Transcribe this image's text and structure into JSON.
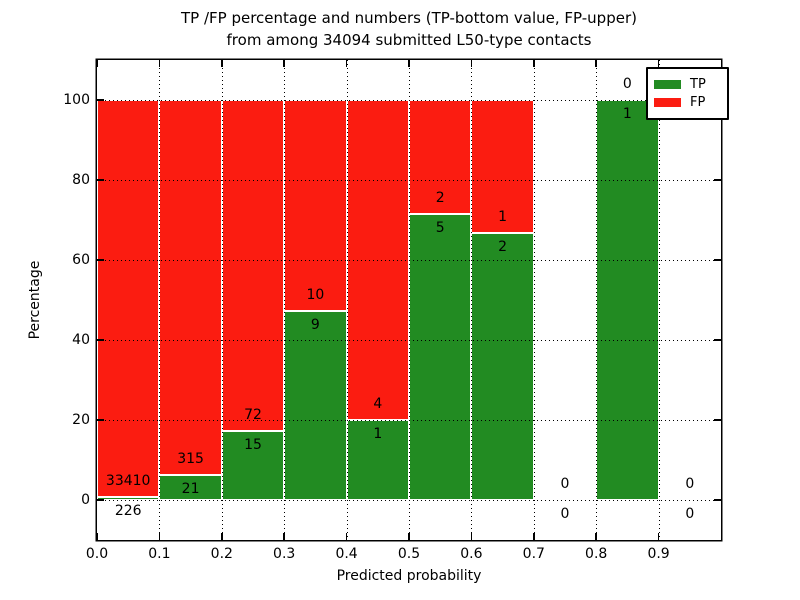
{
  "title": {
    "line1": "TP /FP percentage and numbers (TP-bottom value, FP-upper)",
    "line2": "from among 34094 submitted L50-type contacts"
  },
  "axes": {
    "xlabel": "Predicted probability",
    "ylabel": "Percentage",
    "x_tick_labels": [
      "0.0",
      "0.1",
      "0.2",
      "0.3",
      "0.4",
      "0.5",
      "0.6",
      "0.7",
      "0.8",
      "0.9"
    ],
    "x_tick_values": [
      0.0,
      0.1,
      0.2,
      0.3,
      0.4,
      0.5,
      0.6,
      0.7,
      0.8,
      0.9
    ],
    "y_tick_labels": [
      "0",
      "20",
      "40",
      "60",
      "80",
      "100"
    ],
    "y_tick_values": [
      0,
      20,
      40,
      60,
      80,
      100
    ],
    "xlim": [
      0.0,
      1.0
    ],
    "ylim": [
      -10,
      110
    ],
    "grid": "dotted"
  },
  "legend": {
    "position": "upper right",
    "items": [
      {
        "label": "TP",
        "color": "#228b22"
      },
      {
        "label": "FP",
        "color": "#fb1c11"
      }
    ]
  },
  "colors": {
    "tp_green": "#228b22",
    "fp_red": "#fb1c11",
    "background": "#ffffff",
    "text": "#000000"
  },
  "chart_data": {
    "type": "bar",
    "stacked": true,
    "normalized_to": 100,
    "title": "TP /FP percentage and numbers (TP-bottom value, FP-upper) from among 34094 submitted L50-type contacts",
    "xlabel": "Predicted probability",
    "ylabel": "Percentage",
    "series_order_bottom_to_top": [
      "TP",
      "FP"
    ],
    "bins": [
      {
        "x0": 0.0,
        "x1": 0.1,
        "tp": 226,
        "fp": 33410
      },
      {
        "x0": 0.1,
        "x1": 0.2,
        "tp": 21,
        "fp": 315
      },
      {
        "x0": 0.2,
        "x1": 0.3,
        "tp": 15,
        "fp": 72
      },
      {
        "x0": 0.3,
        "x1": 0.4,
        "tp": 9,
        "fp": 10
      },
      {
        "x0": 0.4,
        "x1": 0.5,
        "tp": 1,
        "fp": 4
      },
      {
        "x0": 0.5,
        "x1": 0.6,
        "tp": 5,
        "fp": 2
      },
      {
        "x0": 0.6,
        "x1": 0.7,
        "tp": 2,
        "fp": 1
      },
      {
        "x0": 0.7,
        "x1": 0.8,
        "tp": 0,
        "fp": 0
      },
      {
        "x0": 0.8,
        "x1": 0.9,
        "tp": 1,
        "fp": 0
      },
      {
        "x0": 0.9,
        "x1": 1.0,
        "tp": 0,
        "fp": 0
      }
    ]
  }
}
